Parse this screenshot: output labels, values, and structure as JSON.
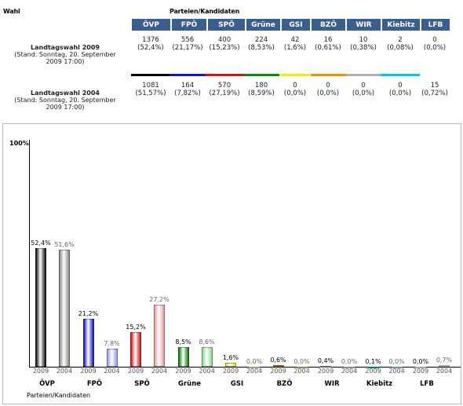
{
  "header": {
    "wahl": "Wahl",
    "parties": "Parteien/Kandidaten"
  },
  "parties": [
    {
      "name": "ÖVP",
      "color": "#000000"
    },
    {
      "name": "FPÖ",
      "color": "#1414c8"
    },
    {
      "name": "SPÖ",
      "color": "#d41414"
    },
    {
      "name": "Grüne",
      "color": "#0a8c0a"
    },
    {
      "name": "GSI",
      "color": "#f0f000"
    },
    {
      "name": "BZÖ",
      "color": "#f09000"
    },
    {
      "name": "WIR",
      "color": "#b0b0b0"
    },
    {
      "name": "Kiebitz",
      "color": "#00c8e6"
    },
    {
      "name": "LFB",
      "color": "#ffffff"
    }
  ],
  "rows": [
    {
      "title": "Landtagswahl 2009",
      "sub1": "(Stand: Sonntag, 20. September",
      "sub2": "2009 17:00)",
      "votes": [
        "1376",
        "556",
        "400",
        "224",
        "42",
        "16",
        "10",
        "2",
        "0"
      ],
      "pcts": [
        "(52,4%)",
        "(21,17%)",
        "(15,23%)",
        "(8,53%)",
        "(1,6%)",
        "(0,61%)",
        "(0,38%)",
        "(0,08%)",
        "(0,0%)"
      ]
    },
    {
      "title": "Landtagswahl 2004",
      "sub1": "(Stand: Sonntag, 20. September",
      "sub2": "2009 17:00)",
      "votes": [
        "1081",
        "164",
        "570",
        "180",
        "0",
        "0",
        "0",
        "0",
        "15"
      ],
      "pcts": [
        "(51,57%)",
        "(7,82%)",
        "(27,19%)",
        "(8,59%)",
        "(0,0%)",
        "(0,0%)",
        "(0,0%)",
        "(0,0%)",
        "(0,72%)"
      ]
    }
  ],
  "chart_data": {
    "type": "bar",
    "categories": [
      "ÖVP",
      "FPÖ",
      "SPÖ",
      "Grüne",
      "GSI",
      "BZÖ",
      "WIR",
      "Kiebitz",
      "LFB"
    ],
    "series": [
      {
        "name": "2009",
        "values": [
          52.4,
          21.2,
          15.2,
          8.5,
          1.6,
          0.6,
          0.4,
          0.1,
          0.0
        ],
        "labels": [
          "52,4%",
          "21,2%",
          "15,2%",
          "8,5%",
          "1,6%",
          "0,6%",
          "0,4%",
          "0,1%",
          "0,0%"
        ]
      },
      {
        "name": "2004",
        "values": [
          51.6,
          7.8,
          27.2,
          8.6,
          0.0,
          0.0,
          0.0,
          0.0,
          0.7
        ],
        "labels": [
          "51,6%",
          "7,8%",
          "27,2%",
          "8,6%",
          "0,0%",
          "0,0%",
          "0,0%",
          "0,0%",
          "0,7%"
        ]
      }
    ],
    "colors_2009": [
      "#111111",
      "#1818b8",
      "#cc1818",
      "#127a12",
      "#e8e800",
      "#e88a00",
      "#999999",
      "#00b8d8",
      "#ffffff"
    ],
    "colors_2004": [
      "#8a8a8a",
      "#9a9ae6",
      "#e89a9a",
      "#8ad88a",
      "#f4f4a0",
      "#f4c888",
      "#dcdcdc",
      "#a0e4f0",
      "#ffffff"
    ],
    "ylabel_top": "100%",
    "xlabel": "Parteien/Kandidaten",
    "ylim": [
      0,
      100
    ]
  }
}
